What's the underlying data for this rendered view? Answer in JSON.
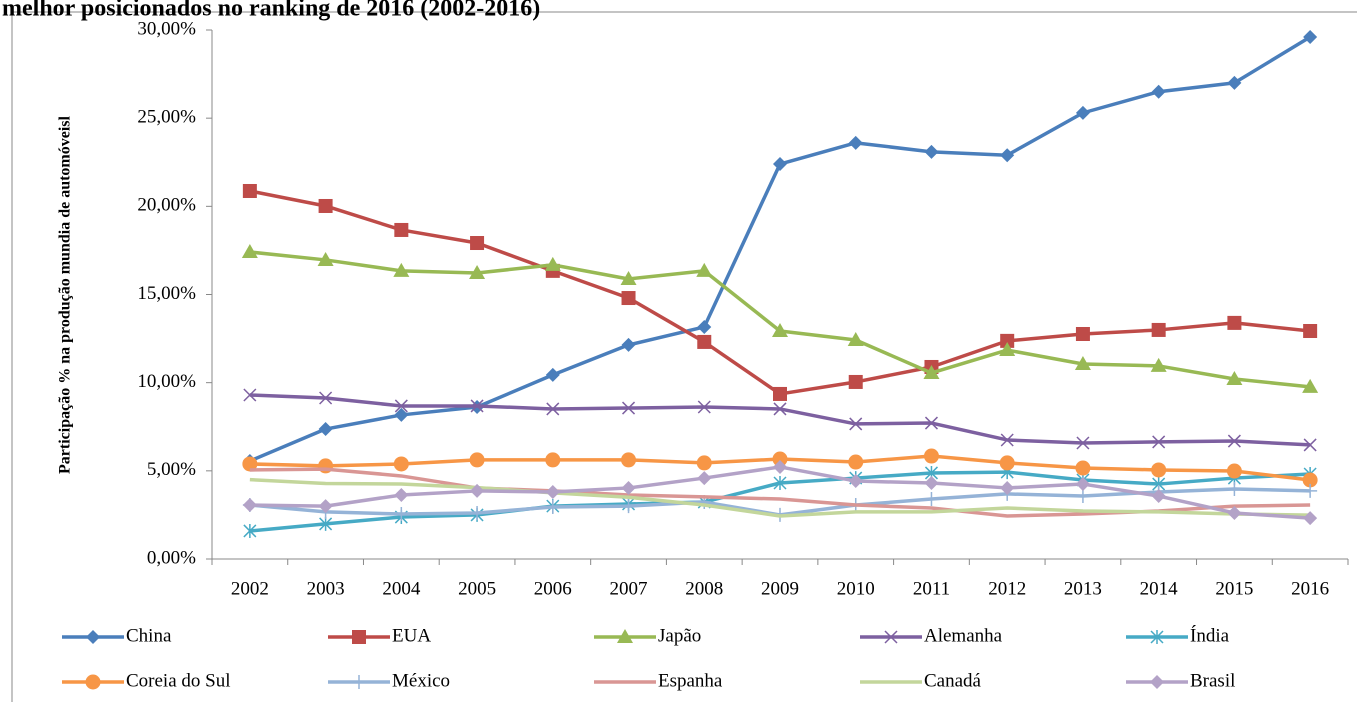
{
  "chart_data": {
    "type": "line",
    "title": "melhor posicionados no ranking de 2016 (2002-2016)",
    "y_label": "Participação %  na produção mundia de automóveisl",
    "categories": [
      "2002",
      "2003",
      "2004",
      "2005",
      "2006",
      "2007",
      "2008",
      "2009",
      "2010",
      "2011",
      "2012",
      "2013",
      "2014",
      "2015",
      "2016"
    ],
    "ylim": [
      0,
      30
    ],
    "yticks": [
      {
        "value": 0,
        "label": "0,00%"
      },
      {
        "value": 5,
        "label": "5,00%"
      },
      {
        "value": 10,
        "label": "10,00%"
      },
      {
        "value": 15,
        "label": "15,00%"
      },
      {
        "value": 20,
        "label": "20,00%"
      },
      {
        "value": 25,
        "label": "25,00%"
      },
      {
        "value": 30,
        "label": "30,00%"
      }
    ],
    "grid": false,
    "legend": "bottom",
    "series": [
      {
        "name": "China",
        "color": "#4a7ebb",
        "marker": "diamond",
        "values": [
          5.56,
          7.37,
          8.17,
          8.62,
          10.44,
          12.14,
          13.16,
          22.4,
          23.6,
          23.09,
          22.9,
          25.3,
          26.5,
          27.0,
          29.6
        ]
      },
      {
        "name": "EUA",
        "color": "#be4b48",
        "marker": "square",
        "values": [
          20.87,
          20.02,
          18.66,
          17.92,
          16.34,
          14.8,
          12.31,
          9.36,
          10.04,
          10.89,
          12.37,
          12.76,
          12.99,
          13.39,
          12.93
        ]
      },
      {
        "name": "Japão",
        "color": "#98b954",
        "marker": "triangle",
        "values": [
          17.41,
          16.96,
          16.34,
          16.22,
          16.68,
          15.88,
          16.34,
          12.93,
          12.42,
          10.55,
          11.85,
          11.06,
          10.95,
          10.21,
          9.76
        ]
      },
      {
        "name": "Alemanha",
        "color": "#7d60a0",
        "marker": "x",
        "values": [
          9.3,
          9.13,
          8.68,
          8.68,
          8.51,
          8.56,
          8.62,
          8.51,
          7.66,
          7.71,
          6.75,
          6.58,
          6.64,
          6.69,
          6.47
        ]
      },
      {
        "name": "Índia",
        "color": "#46aac5",
        "marker": "star",
        "values": [
          1.59,
          1.99,
          2.38,
          2.5,
          3.0,
          3.12,
          3.23,
          4.31,
          4.59,
          4.88,
          4.93,
          4.48,
          4.25,
          4.59,
          4.82
        ]
      },
      {
        "name": "Coreia do Sul",
        "color": "#f79646",
        "marker": "circle",
        "values": [
          5.39,
          5.28,
          5.39,
          5.62,
          5.62,
          5.62,
          5.45,
          5.67,
          5.5,
          5.84,
          5.45,
          5.16,
          5.05,
          4.99,
          4.48
        ]
      },
      {
        "name": "México",
        "color": "#95b3d7",
        "marker": "plus",
        "values": [
          3.06,
          2.67,
          2.55,
          2.61,
          2.95,
          3.0,
          3.23,
          2.5,
          3.06,
          3.4,
          3.69,
          3.57,
          3.8,
          3.97,
          3.86
        ]
      },
      {
        "name": "Espanha",
        "color": "#d99694",
        "marker": "none",
        "values": [
          5.05,
          5.1,
          4.71,
          4.03,
          3.86,
          3.63,
          3.52,
          3.4,
          3.06,
          2.89,
          2.44,
          2.55,
          2.72,
          3.0,
          3.06
        ]
      },
      {
        "name": "Canadá",
        "color": "#c3d69b",
        "marker": "none",
        "values": [
          4.5,
          4.28,
          4.25,
          4.05,
          3.75,
          3.5,
          3.06,
          2.44,
          2.67,
          2.67,
          2.89,
          2.72,
          2.67,
          2.55,
          2.49
        ]
      },
      {
        "name": "Brasil",
        "color": "#b3a2c7",
        "marker": "diamond",
        "values": [
          3.06,
          3.0,
          3.63,
          3.86,
          3.8,
          4.03,
          4.59,
          5.22,
          4.42,
          4.31,
          4.03,
          4.25,
          3.57,
          2.61,
          2.32
        ]
      }
    ]
  }
}
